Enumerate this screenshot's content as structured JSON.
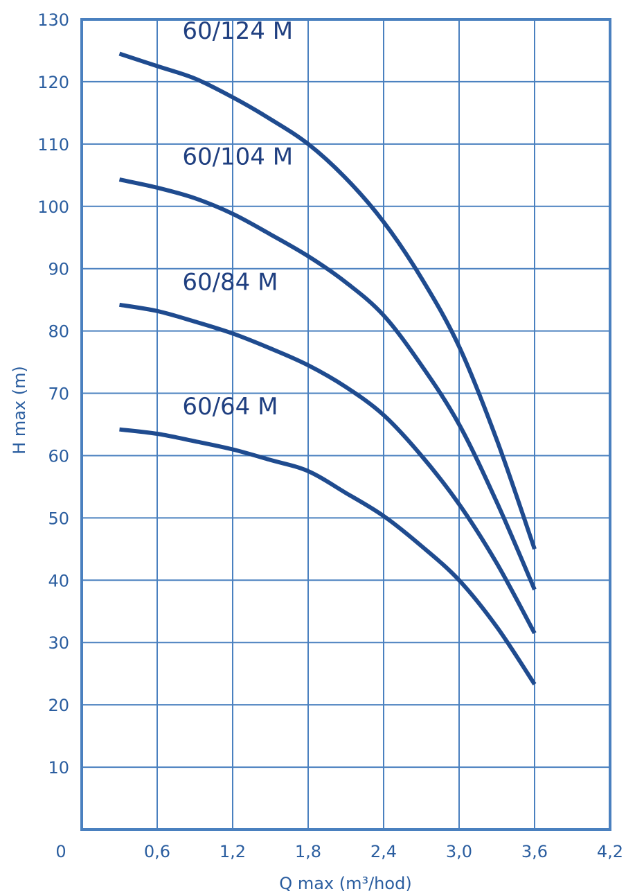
{
  "chart_data": {
    "type": "line",
    "title": "",
    "xlabel": "Q max (m³/hod)",
    "ylabel": "H max (m)",
    "xlim": [
      0,
      4.2
    ],
    "ylim": [
      0,
      130
    ],
    "grid": true,
    "legend": "none",
    "x_ticks": [
      "0",
      "0,6",
      "1,2",
      "1,8",
      "2,4",
      "3,0",
      "3,6",
      "4,2"
    ],
    "y_ticks": [
      "10",
      "20",
      "30",
      "40",
      "50",
      "60",
      "70",
      "80",
      "90",
      "100",
      "110",
      "120",
      "130"
    ],
    "colors": {
      "grid": "#4a80bf",
      "frame": "#4a80bf",
      "line": "#1f4b8f",
      "text": "#2a5d9f",
      "series_label": "#1f3f80"
    },
    "series": [
      {
        "name": "60/124 M",
        "x": [
          0.3,
          0.6,
          0.9,
          1.2,
          1.5,
          1.8,
          2.1,
          2.4,
          2.7,
          3.0,
          3.3,
          3.6
        ],
        "values": [
          124.5,
          122.5,
          120.5,
          117.5,
          114,
          110,
          104.5,
          97.5,
          88.5,
          77.5,
          62.5,
          45
        ]
      },
      {
        "name": "60/104 M",
        "x": [
          0.3,
          0.6,
          0.9,
          1.2,
          1.5,
          1.8,
          2.1,
          2.4,
          2.7,
          3.0,
          3.3,
          3.6
        ],
        "values": [
          104.3,
          103,
          101.3,
          98.8,
          95.5,
          92,
          87.8,
          82.5,
          74.5,
          65,
          52.5,
          38.5
        ]
      },
      {
        "name": "60/84 M",
        "x": [
          0.3,
          0.6,
          0.9,
          1.2,
          1.5,
          1.8,
          2.1,
          2.4,
          2.7,
          3.0,
          3.3,
          3.6
        ],
        "values": [
          84.2,
          83.2,
          81.5,
          79.6,
          77.2,
          74.5,
          71,
          66.5,
          60,
          52.2,
          42.7,
          31.5
        ]
      },
      {
        "name": "60/64 M",
        "x": [
          0.3,
          0.6,
          0.9,
          1.2,
          1.5,
          1.8,
          2.1,
          2.4,
          2.7,
          3.0,
          3.3,
          3.6
        ],
        "values": [
          64.2,
          63.5,
          62.3,
          61,
          59.3,
          57.5,
          54,
          50.3,
          45.5,
          40,
          32.5,
          23.3
        ]
      }
    ]
  }
}
